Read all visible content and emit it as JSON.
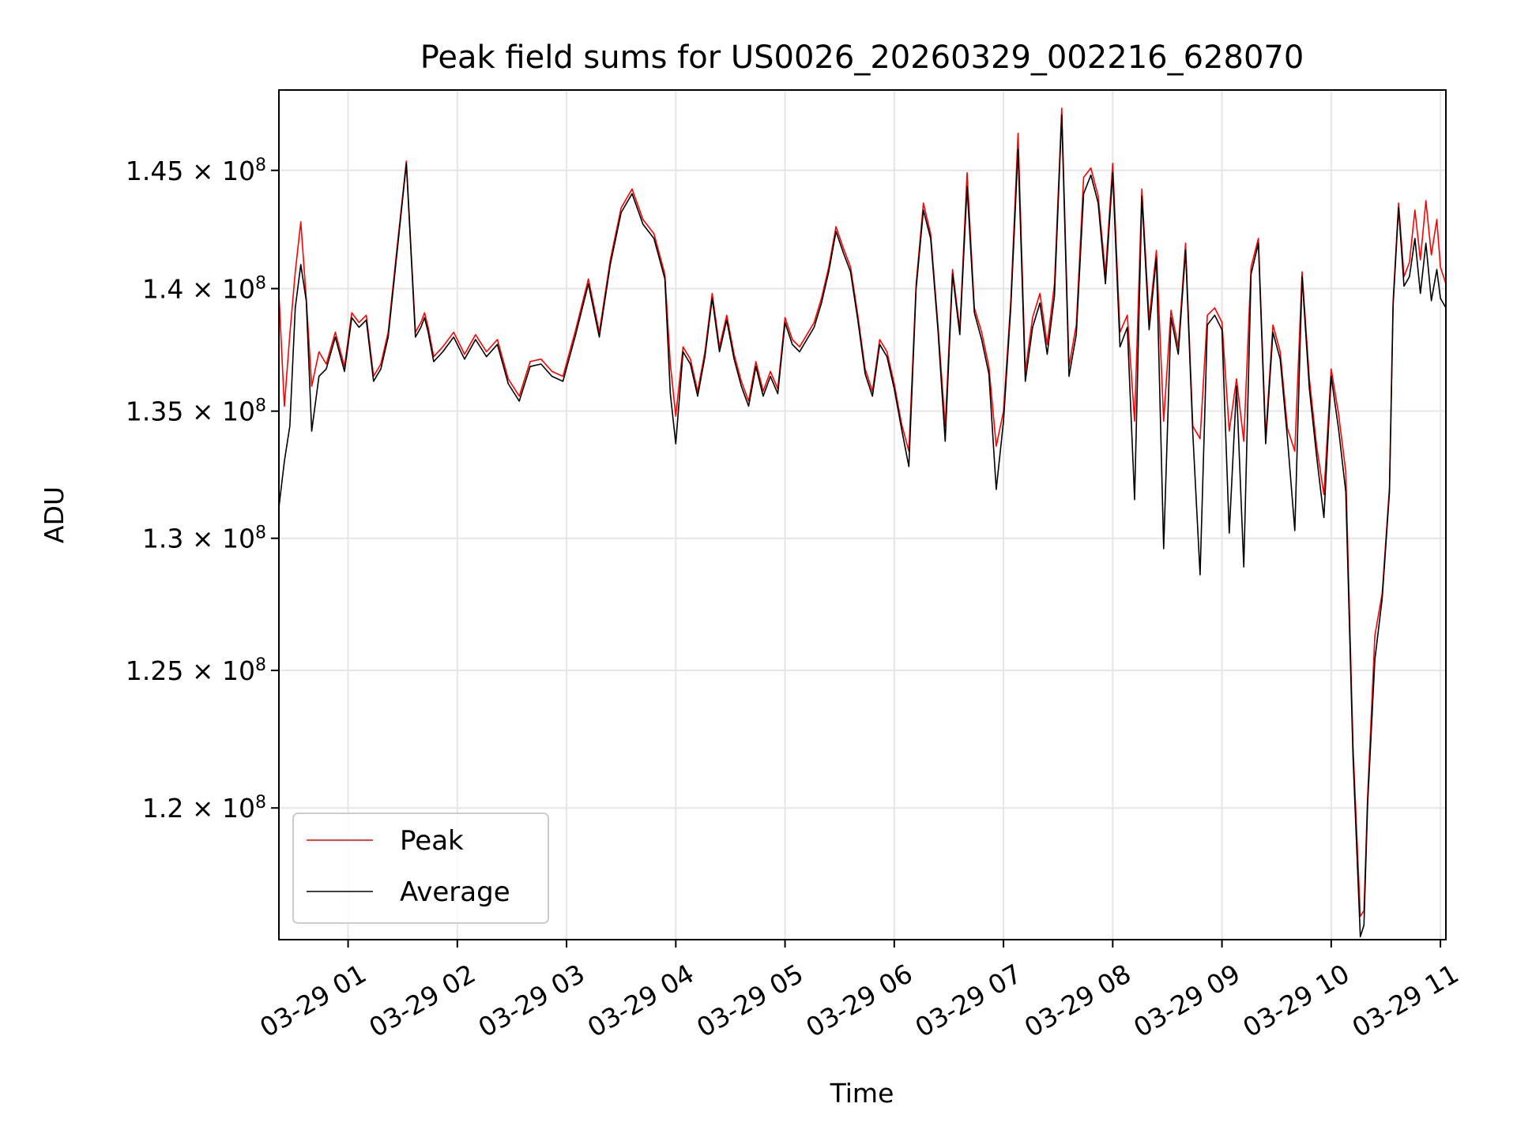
{
  "chart_data": {
    "type": "line",
    "title": "Peak field sums for US0026_20260329_002216_628070",
    "xlabel": "Time",
    "ylabel": "ADU",
    "y_scale": "log",
    "xlim": [
      "2026-03-29 00:22",
      "2026-03-29 11:03"
    ],
    "ylim": [
      115400000,
      148500000
    ],
    "grid": true,
    "legend_position": "lower-left",
    "x_ticks": [
      "03-29 01",
      "03-29 02",
      "03-29 03",
      "03-29 04",
      "03-29 05",
      "03-29 06",
      "03-29 07",
      "03-29 08",
      "03-29 09",
      "03-29 10",
      "03-29 11"
    ],
    "y_ticks": [
      {
        "value": 120000000,
        "mantissa": "1.2",
        "exponent": "8"
      },
      {
        "value": 125000000,
        "mantissa": "1.25",
        "exponent": "8"
      },
      {
        "value": 130000000,
        "mantissa": "1.3",
        "exponent": "8"
      },
      {
        "value": 135000000,
        "mantissa": "1.35",
        "exponent": "8"
      },
      {
        "value": 140000000,
        "mantissa": "1.4",
        "exponent": "8"
      },
      {
        "value": 145000000,
        "mantissa": "1.45",
        "exponent": "8"
      }
    ],
    "series": [
      {
        "name": "Peak",
        "color": "#ff0000",
        "x": [
          "2026-03-29 00:22",
          "2026-03-29 00:25",
          "2026-03-29 00:28",
          "2026-03-29 00:31",
          "2026-03-29 00:34",
          "2026-03-29 00:37",
          "2026-03-29 00:40",
          "2026-03-29 00:44",
          "2026-03-29 00:48",
          "2026-03-29 00:53",
          "2026-03-29 00:58",
          "2026-03-29 01:02",
          "2026-03-29 01:06",
          "2026-03-29 01:10",
          "2026-03-29 01:14",
          "2026-03-29 01:18",
          "2026-03-29 01:22",
          "2026-03-29 01:27",
          "2026-03-29 01:32",
          "2026-03-29 01:37",
          "2026-03-29 01:40",
          "2026-03-29 01:42",
          "2026-03-29 01:44",
          "2026-03-29 01:47",
          "2026-03-29 01:52",
          "2026-03-29 01:58",
          "2026-03-29 02:04",
          "2026-03-29 02:10",
          "2026-03-29 02:16",
          "2026-03-29 02:22",
          "2026-03-29 02:28",
          "2026-03-29 02:34",
          "2026-03-29 02:40",
          "2026-03-29 02:46",
          "2026-03-29 02:52",
          "2026-03-29 02:58",
          "2026-03-29 03:05",
          "2026-03-29 03:12",
          "2026-03-29 03:18",
          "2026-03-29 03:24",
          "2026-03-29 03:30",
          "2026-03-29 03:36",
          "2026-03-29 03:42",
          "2026-03-29 03:48",
          "2026-03-29 03:54",
          "2026-03-29 03:57",
          "2026-03-29 04:00",
          "2026-03-29 04:04",
          "2026-03-29 04:08",
          "2026-03-29 04:12",
          "2026-03-29 04:16",
          "2026-03-29 04:20",
          "2026-03-29 04:24",
          "2026-03-29 04:28",
          "2026-03-29 04:32",
          "2026-03-29 04:36",
          "2026-03-29 04:40",
          "2026-03-29 04:44",
          "2026-03-29 04:48",
          "2026-03-29 04:52",
          "2026-03-29 04:56",
          "2026-03-29 05:00",
          "2026-03-29 05:04",
          "2026-03-29 05:08",
          "2026-03-29 05:12",
          "2026-03-29 05:16",
          "2026-03-29 05:20",
          "2026-03-29 05:24",
          "2026-03-29 05:28",
          "2026-03-29 05:32",
          "2026-03-29 05:36",
          "2026-03-29 05:40",
          "2026-03-29 05:44",
          "2026-03-29 05:48",
          "2026-03-29 05:52",
          "2026-03-29 05:56",
          "2026-03-29 06:00",
          "2026-03-29 06:04",
          "2026-03-29 06:08",
          "2026-03-29 06:12",
          "2026-03-29 06:16",
          "2026-03-29 06:20",
          "2026-03-29 06:24",
          "2026-03-29 06:28",
          "2026-03-29 06:32",
          "2026-03-29 06:36",
          "2026-03-29 06:40",
          "2026-03-29 06:44",
          "2026-03-29 06:48",
          "2026-03-29 06:52",
          "2026-03-29 06:56",
          "2026-03-29 07:00",
          "2026-03-29 07:04",
          "2026-03-29 07:08",
          "2026-03-29 07:12",
          "2026-03-29 07:16",
          "2026-03-29 07:20",
          "2026-03-29 07:24",
          "2026-03-29 07:28",
          "2026-03-29 07:32",
          "2026-03-29 07:36",
          "2026-03-29 07:40",
          "2026-03-29 07:44",
          "2026-03-29 07:48",
          "2026-03-29 07:52",
          "2026-03-29 07:56",
          "2026-03-29 08:00",
          "2026-03-29 08:04",
          "2026-03-29 08:08",
          "2026-03-29 08:12",
          "2026-03-29 08:16",
          "2026-03-29 08:20",
          "2026-03-29 08:24",
          "2026-03-29 08:28",
          "2026-03-29 08:32",
          "2026-03-29 08:36",
          "2026-03-29 08:40",
          "2026-03-29 08:44",
          "2026-03-29 08:48",
          "2026-03-29 08:52",
          "2026-03-29 08:56",
          "2026-03-29 09:00",
          "2026-03-29 09:04",
          "2026-03-29 09:08",
          "2026-03-29 09:12",
          "2026-03-29 09:16",
          "2026-03-29 09:20",
          "2026-03-29 09:24",
          "2026-03-29 09:28",
          "2026-03-29 09:32",
          "2026-03-29 09:36",
          "2026-03-29 09:40",
          "2026-03-29 09:44",
          "2026-03-29 09:48",
          "2026-03-29 09:52",
          "2026-03-29 09:56",
          "2026-03-29 10:00",
          "2026-03-29 10:04",
          "2026-03-29 10:08",
          "2026-03-29 10:12",
          "2026-03-29 10:16",
          "2026-03-29 10:18",
          "2026-03-29 10:20",
          "2026-03-29 10:24",
          "2026-03-29 10:28",
          "2026-03-29 10:32",
          "2026-03-29 10:34",
          "2026-03-29 10:37",
          "2026-03-29 10:40",
          "2026-03-29 10:43",
          "2026-03-29 10:46",
          "2026-03-29 10:49",
          "2026-03-29 10:52",
          "2026-03-29 10:55",
          "2026-03-29 10:58",
          "2026-03-29 11:00",
          "2026-03-29 11:03"
        ],
        "values": [
          139800000,
          135200000,
          138100000,
          140700000,
          142800000,
          139600000,
          136000000,
          137400000,
          136900000,
          138200000,
          136800000,
          139000000,
          138600000,
          138900000,
          136400000,
          136900000,
          138200000,
          141800000,
          145400000,
          138200000,
          138600000,
          139000000,
          138400000,
          137200000,
          137600000,
          138200000,
          137300000,
          138100000,
          137400000,
          137900000,
          136300000,
          135600000,
          137000000,
          137100000,
          136600000,
          136400000,
          138300000,
          140400000,
          138200000,
          141200000,
          143400000,
          144200000,
          142900000,
          142300000,
          140600000,
          136900000,
          134800000,
          137600000,
          137100000,
          135800000,
          137400000,
          139800000,
          137600000,
          138900000,
          137300000,
          136200000,
          135400000,
          137000000,
          135800000,
          136600000,
          135900000,
          138800000,
          137900000,
          137600000,
          138100000,
          138600000,
          139600000,
          140900000,
          142600000,
          141700000,
          140900000,
          138900000,
          136700000,
          135800000,
          137900000,
          137400000,
          136100000,
          134500000,
          133400000,
          140200000,
          143600000,
          142300000,
          138500000,
          134400000,
          140800000,
          138300000,
          144900000,
          139200000,
          138200000,
          136800000,
          133600000,
          135000000,
          139500000,
          146600000,
          136600000,
          138800000,
          139800000,
          137700000,
          140200000,
          147700000,
          136800000,
          138500000,
          144700000,
          145100000,
          143900000,
          140600000,
          145300000,
          138200000,
          138900000,
          134600000,
          144200000,
          138700000,
          141600000,
          134600000,
          139100000,
          137600000,
          141900000,
          134400000,
          133900000,
          138900000,
          139200000,
          138600000,
          134200000,
          136300000,
          133800000,
          140900000,
          142100000,
          134000000,
          138500000,
          137400000,
          134300000,
          133400000,
          140700000,
          136300000,
          133600000,
          131700000,
          136700000,
          134900000,
          132600000,
          122200000,
          116200000,
          116400000,
          120400000,
          126300000,
          127900000,
          132000000,
          139500000,
          143600000,
          140500000,
          141100000,
          143300000,
          141200000,
          143700000,
          141400000,
          142900000,
          140900000,
          140200000
        ]
      },
      {
        "name": "Average",
        "color": "#000000",
        "x": [
          "2026-03-29 00:22",
          "2026-03-29 00:25",
          "2026-03-29 00:28",
          "2026-03-29 00:31",
          "2026-03-29 00:34",
          "2026-03-29 00:37",
          "2026-03-29 00:40",
          "2026-03-29 00:44",
          "2026-03-29 00:48",
          "2026-03-29 00:53",
          "2026-03-29 00:58",
          "2026-03-29 01:02",
          "2026-03-29 01:06",
          "2026-03-29 01:10",
          "2026-03-29 01:14",
          "2026-03-29 01:18",
          "2026-03-29 01:22",
          "2026-03-29 01:27",
          "2026-03-29 01:32",
          "2026-03-29 01:37",
          "2026-03-29 01:40",
          "2026-03-29 01:42",
          "2026-03-29 01:44",
          "2026-03-29 01:47",
          "2026-03-29 01:52",
          "2026-03-29 01:58",
          "2026-03-29 02:04",
          "2026-03-29 02:10",
          "2026-03-29 02:16",
          "2026-03-29 02:22",
          "2026-03-29 02:28",
          "2026-03-29 02:34",
          "2026-03-29 02:40",
          "2026-03-29 02:46",
          "2026-03-29 02:52",
          "2026-03-29 02:58",
          "2026-03-29 03:05",
          "2026-03-29 03:12",
          "2026-03-29 03:18",
          "2026-03-29 03:24",
          "2026-03-29 03:30",
          "2026-03-29 03:36",
          "2026-03-29 03:42",
          "2026-03-29 03:48",
          "2026-03-29 03:54",
          "2026-03-29 03:57",
          "2026-03-29 04:00",
          "2026-03-29 04:04",
          "2026-03-29 04:08",
          "2026-03-29 04:12",
          "2026-03-29 04:16",
          "2026-03-29 04:20",
          "2026-03-29 04:24",
          "2026-03-29 04:28",
          "2026-03-29 04:32",
          "2026-03-29 04:36",
          "2026-03-29 04:40",
          "2026-03-29 04:44",
          "2026-03-29 04:48",
          "2026-03-29 04:52",
          "2026-03-29 04:56",
          "2026-03-29 05:00",
          "2026-03-29 05:04",
          "2026-03-29 05:08",
          "2026-03-29 05:12",
          "2026-03-29 05:16",
          "2026-03-29 05:20",
          "2026-03-29 05:24",
          "2026-03-29 05:28",
          "2026-03-29 05:32",
          "2026-03-29 05:36",
          "2026-03-29 05:40",
          "2026-03-29 05:44",
          "2026-03-29 05:48",
          "2026-03-29 05:52",
          "2026-03-29 05:56",
          "2026-03-29 06:00",
          "2026-03-29 06:04",
          "2026-03-29 06:08",
          "2026-03-29 06:12",
          "2026-03-29 06:16",
          "2026-03-29 06:20",
          "2026-03-29 06:24",
          "2026-03-29 06:28",
          "2026-03-29 06:32",
          "2026-03-29 06:36",
          "2026-03-29 06:40",
          "2026-03-29 06:44",
          "2026-03-29 06:48",
          "2026-03-29 06:52",
          "2026-03-29 06:56",
          "2026-03-29 07:00",
          "2026-03-29 07:04",
          "2026-03-29 07:08",
          "2026-03-29 07:12",
          "2026-03-29 07:16",
          "2026-03-29 07:20",
          "2026-03-29 07:24",
          "2026-03-29 07:28",
          "2026-03-29 07:32",
          "2026-03-29 07:36",
          "2026-03-29 07:40",
          "2026-03-29 07:44",
          "2026-03-29 07:48",
          "2026-03-29 07:52",
          "2026-03-29 07:56",
          "2026-03-29 08:00",
          "2026-03-29 08:04",
          "2026-03-29 08:08",
          "2026-03-29 08:12",
          "2026-03-29 08:16",
          "2026-03-29 08:20",
          "2026-03-29 08:24",
          "2026-03-29 08:28",
          "2026-03-29 08:32",
          "2026-03-29 08:36",
          "2026-03-29 08:40",
          "2026-03-29 08:44",
          "2026-03-29 08:48",
          "2026-03-29 08:52",
          "2026-03-29 08:56",
          "2026-03-29 09:00",
          "2026-03-29 09:04",
          "2026-03-29 09:08",
          "2026-03-29 09:12",
          "2026-03-29 09:16",
          "2026-03-29 09:20",
          "2026-03-29 09:24",
          "2026-03-29 09:28",
          "2026-03-29 09:32",
          "2026-03-29 09:36",
          "2026-03-29 09:40",
          "2026-03-29 09:44",
          "2026-03-29 09:48",
          "2026-03-29 09:52",
          "2026-03-29 09:56",
          "2026-03-29 10:00",
          "2026-03-29 10:04",
          "2026-03-29 10:08",
          "2026-03-29 10:12",
          "2026-03-29 10:16",
          "2026-03-29 10:18",
          "2026-03-29 10:20",
          "2026-03-29 10:24",
          "2026-03-29 10:28",
          "2026-03-29 10:32",
          "2026-03-29 10:34",
          "2026-03-29 10:37",
          "2026-03-29 10:40",
          "2026-03-29 10:43",
          "2026-03-29 10:46",
          "2026-03-29 10:49",
          "2026-03-29 10:52",
          "2026-03-29 10:55",
          "2026-03-29 10:58",
          "2026-03-29 11:00",
          "2026-03-29 11:03"
        ],
        "values": [
          131200000,
          133000000,
          134400000,
          139200000,
          141000000,
          139500000,
          134200000,
          136400000,
          136700000,
          138000000,
          136600000,
          138800000,
          138400000,
          138700000,
          136200000,
          136700000,
          138000000,
          141600000,
          145300000,
          138000000,
          138400000,
          138800000,
          138200000,
          137000000,
          137400000,
          138000000,
          137100000,
          137900000,
          137200000,
          137700000,
          136100000,
          135400000,
          136800000,
          136900000,
          136400000,
          136200000,
          138100000,
          140200000,
          138000000,
          141000000,
          143200000,
          144000000,
          142700000,
          142100000,
          140400000,
          135700000,
          133700000,
          137400000,
          136900000,
          135600000,
          137200000,
          139600000,
          137400000,
          138700000,
          137100000,
          136000000,
          135200000,
          136800000,
          135600000,
          136400000,
          135700000,
          138600000,
          137700000,
          137400000,
          137900000,
          138400000,
          139400000,
          140700000,
          142400000,
          141500000,
          140700000,
          138700000,
          136500000,
          135600000,
          137700000,
          137200000,
          135900000,
          134300000,
          132800000,
          140000000,
          143300000,
          142100000,
          138300000,
          133800000,
          140600000,
          138100000,
          144300000,
          139000000,
          137900000,
          136500000,
          131900000,
          134600000,
          139200000,
          145900000,
          136200000,
          138400000,
          139400000,
          137300000,
          139700000,
          147400000,
          136400000,
          138100000,
          144000000,
          144800000,
          143600000,
          140200000,
          144900000,
          137600000,
          138400000,
          131500000,
          143900000,
          138300000,
          141300000,
          129600000,
          138800000,
          137300000,
          141600000,
          134100000,
          128600000,
          138500000,
          138900000,
          138300000,
          130200000,
          136000000,
          128900000,
          140600000,
          141900000,
          133700000,
          138200000,
          137100000,
          133900000,
          130300000,
          140500000,
          135900000,
          133200000,
          130800000,
          136400000,
          134300000,
          131800000,
          121800000,
          115500000,
          115900000,
          120100000,
          125400000,
          127700000,
          131800000,
          139300000,
          143400000,
          140100000,
          140500000,
          142100000,
          139800000,
          141900000,
          139500000,
          140800000,
          139600000,
          139200000
        ]
      }
    ]
  }
}
